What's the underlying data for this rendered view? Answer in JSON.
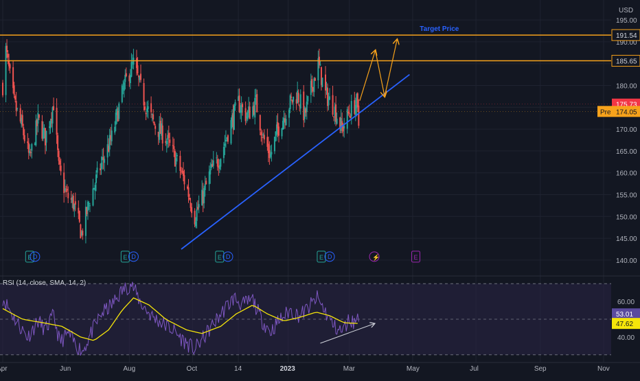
{
  "currency_label": "USD",
  "colors": {
    "background": "#131722",
    "grid": "#1f2330",
    "up": "#26a69a",
    "down": "#ef5350",
    "resistance": "#f7a21b",
    "trendline": "#2962ff",
    "projection": "#f7a21b",
    "rsi_line": "#7e57c2",
    "rsi_sma": "#f5e50a",
    "rsi_band": "#2a2446",
    "last_price_badge": "#f23645",
    "pre_badge": "#f7a21b",
    "rsi_badge": "#5b4b9e",
    "rsi_sma_badge": "#f5e50a",
    "target_label": "#2962ff",
    "divergence_arrow": "#d1d4dc"
  },
  "annotations": {
    "target_price_label": "Target Price",
    "pre_label": "Pre"
  },
  "chart_data": [
    {
      "type": "candlestick",
      "title": "",
      "x_tick_labels": [
        "Apr",
        "Jun",
        "Aug",
        "Oct",
        "14",
        "2023",
        "Mar",
        "May",
        "Jul",
        "Sep",
        "Nov"
      ],
      "x_tick_dates": [
        "2022-04-01",
        "2022-06-01",
        "2022-08-01",
        "2022-10-01",
        "2022-11-14",
        "2023-01-01",
        "2023-03-01",
        "2023-05-01",
        "2023-07-01",
        "2023-09-01",
        "2023-11-01"
      ],
      "ylim": [
        137,
        198
      ],
      "y_ticks": [
        "140.00",
        "145.00",
        "150.00",
        "155.00",
        "160.00",
        "165.00",
        "170.00",
        "175.00",
        "180.00",
        "185.00",
        "190.00",
        "195.00"
      ],
      "close_anchors": [
        [
          "2022-04-01",
          180
        ],
        [
          "2022-04-04",
          188
        ],
        [
          "2022-04-12",
          176
        ],
        [
          "2022-04-20",
          170
        ],
        [
          "2022-04-27",
          163
        ],
        [
          "2022-05-05",
          172
        ],
        [
          "2022-05-12",
          168
        ],
        [
          "2022-05-20",
          176
        ],
        [
          "2022-05-25",
          161
        ],
        [
          "2022-06-01",
          155
        ],
        [
          "2022-06-08",
          153
        ],
        [
          "2022-06-16",
          146
        ],
        [
          "2022-06-24",
          154
        ],
        [
          "2022-07-05",
          162
        ],
        [
          "2022-07-15",
          168
        ],
        [
          "2022-07-25",
          178
        ],
        [
          "2022-07-30",
          182
        ],
        [
          "2022-08-05",
          185
        ],
        [
          "2022-08-16",
          176
        ],
        [
          "2022-08-25",
          171
        ],
        [
          "2022-09-05",
          168
        ],
        [
          "2022-09-15",
          163
        ],
        [
          "2022-09-25",
          157
        ],
        [
          "2022-10-03",
          150
        ],
        [
          "2022-10-10",
          154
        ],
        [
          "2022-10-18",
          160
        ],
        [
          "2022-10-28",
          164
        ],
        [
          "2022-11-05",
          170
        ],
        [
          "2022-11-14",
          176
        ],
        [
          "2022-11-22",
          173
        ],
        [
          "2022-12-01",
          176
        ],
        [
          "2022-12-08",
          168
        ],
        [
          "2022-12-15",
          164
        ],
        [
          "2022-12-22",
          170
        ],
        [
          "2023-01-03",
          176
        ],
        [
          "2023-01-10",
          178
        ],
        [
          "2023-01-17",
          173
        ],
        [
          "2023-01-24",
          180
        ],
        [
          "2023-01-30",
          185
        ],
        [
          "2023-02-06",
          178
        ],
        [
          "2023-02-14",
          175
        ],
        [
          "2023-02-22",
          170
        ],
        [
          "2023-03-01",
          174
        ],
        [
          "2023-03-08",
          176
        ],
        [
          "2023-03-10",
          171
        ]
      ],
      "horizontal_levels": [
        {
          "value": 191.54,
          "label": "191.54",
          "style": "solid"
        },
        {
          "value": 185.65,
          "label": "185.65",
          "style": "solid"
        }
      ],
      "price_badges": [
        {
          "value": 175.73,
          "label": "175.73",
          "kind": "last"
        },
        {
          "value": 174.05,
          "label": "174.05",
          "kind": "pre"
        }
      ],
      "trendline": {
        "x0": "2022-09-20",
        "y0": 142.5,
        "x1": "2023-04-28",
        "y1": 182.5
      },
      "projection_path": [
        [
          "2023-03-11",
          176.5
        ],
        [
          "2023-03-26",
          188
        ],
        [
          "2023-04-04",
          177.5
        ],
        [
          "2023-04-16",
          190.5
        ]
      ],
      "target_price_at": {
        "x": "2023-04-18",
        "y": 193
      },
      "event_markers": [
        {
          "date": "2022-04-27",
          "kind": "E"
        },
        {
          "date": "2022-05-02",
          "kind": "D"
        },
        {
          "date": "2022-07-28",
          "kind": "E"
        },
        {
          "date": "2022-08-05",
          "kind": "D"
        },
        {
          "date": "2022-10-27",
          "kind": "E"
        },
        {
          "date": "2022-11-04",
          "kind": "D"
        },
        {
          "date": "2023-02-02",
          "kind": "E"
        },
        {
          "date": "2023-02-10",
          "kind": "D"
        },
        {
          "date": "2023-03-25",
          "kind": "split"
        },
        {
          "date": "2023-05-04",
          "kind": "E"
        }
      ]
    },
    {
      "type": "line",
      "title": "RSI (14, close, SMA, 14, 2)",
      "ylim": [
        28,
        72
      ],
      "y_ticks": [
        "40.00",
        "60.00"
      ],
      "band": [
        30,
        70
      ],
      "series": [
        {
          "role": "rsi",
          "points": [
            [
              "2022-04-01",
              62
            ],
            [
              "2022-04-05",
              58
            ],
            [
              "2022-04-15",
              48
            ],
            [
              "2022-04-25",
              40
            ],
            [
              "2022-05-05",
              49
            ],
            [
              "2022-05-12",
              44
            ],
            [
              "2022-05-20",
              52
            ],
            [
              "2022-05-26",
              37
            ],
            [
              "2022-06-03",
              42
            ],
            [
              "2022-06-10",
              36
            ],
            [
              "2022-06-17",
              32
            ],
            [
              "2022-06-25",
              42
            ],
            [
              "2022-07-05",
              53
            ],
            [
              "2022-07-15",
              58
            ],
            [
              "2022-07-25",
              66
            ],
            [
              "2022-08-03",
              70
            ],
            [
              "2022-08-12",
              59
            ],
            [
              "2022-08-22",
              52
            ],
            [
              "2022-09-01",
              48
            ],
            [
              "2022-09-12",
              44
            ],
            [
              "2022-09-22",
              38
            ],
            [
              "2022-10-03",
              33
            ],
            [
              "2022-10-12",
              40
            ],
            [
              "2022-10-22",
              48
            ],
            [
              "2022-11-01",
              56
            ],
            [
              "2022-11-10",
              62
            ],
            [
              "2022-11-18",
              58
            ],
            [
              "2022-11-28",
              61
            ],
            [
              "2022-12-06",
              50
            ],
            [
              "2022-12-15",
              43
            ],
            [
              "2022-12-23",
              49
            ],
            [
              "2023-01-03",
              55
            ],
            [
              "2023-01-12",
              52
            ],
            [
              "2023-01-20",
              56
            ],
            [
              "2023-01-29",
              62
            ],
            [
              "2023-02-06",
              54
            ],
            [
              "2023-02-14",
              46
            ],
            [
              "2023-02-22",
              43
            ],
            [
              "2023-03-01",
              50
            ],
            [
              "2023-03-06",
              48
            ],
            [
              "2023-03-10",
              53
            ]
          ]
        },
        {
          "role": "sma",
          "points": [
            [
              "2022-04-01",
              56
            ],
            [
              "2022-04-20",
              50
            ],
            [
              "2022-05-10",
              48
            ],
            [
              "2022-05-28",
              46
            ],
            [
              "2022-06-15",
              40
            ],
            [
              "2022-06-28",
              38
            ],
            [
              "2022-07-12",
              44
            ],
            [
              "2022-07-25",
              55
            ],
            [
              "2022-08-05",
              62
            ],
            [
              "2022-08-20",
              58
            ],
            [
              "2022-09-05",
              50
            ],
            [
              "2022-09-25",
              44
            ],
            [
              "2022-10-10",
              42
            ],
            [
              "2022-10-28",
              46
            ],
            [
              "2022-11-12",
              53
            ],
            [
              "2022-11-28",
              58
            ],
            [
              "2022-12-12",
              53
            ],
            [
              "2022-12-28",
              49
            ],
            [
              "2023-01-12",
              51
            ],
            [
              "2023-01-28",
              54
            ],
            [
              "2023-02-10",
              52
            ],
            [
              "2023-02-24",
              48
            ],
            [
              "2023-03-10",
              47.62
            ]
          ]
        }
      ],
      "value_badges": [
        {
          "value": 53.01,
          "label": "53.01",
          "role": "rsi"
        },
        {
          "value": 47.62,
          "label": "47.62",
          "role": "sma"
        }
      ],
      "divergence_arrow": {
        "x0": "2023-02-01",
        "y0": 36.5,
        "x1": "2023-03-25",
        "y1": 47.5
      }
    }
  ]
}
